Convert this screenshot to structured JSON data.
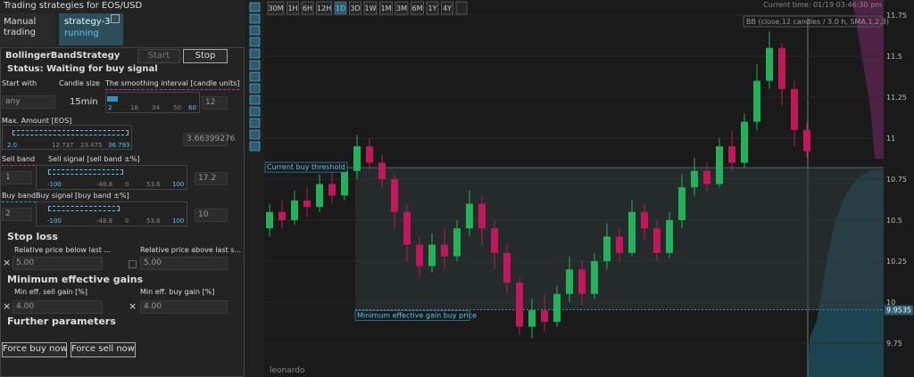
{
  "left_panel": {
    "title": "Trading strategies for EOS/USD",
    "tabs": [
      {
        "label": "Manual trading"
      },
      {
        "label": "strategy-3",
        "status": "running"
      }
    ],
    "strategy_name": "BollingerBandStrategy",
    "buttons": {
      "start": "Start",
      "stop": "Stop"
    },
    "status": "Status: Waiting for buy signal",
    "start_with": {
      "label": "Start with",
      "value": "any"
    },
    "candle_size": {
      "label": "Candle size",
      "value": "15min"
    },
    "smoothing": {
      "label": "The smoothing interval [candle units]",
      "ticks": [
        "2",
        "18",
        "34",
        "50",
        "60"
      ],
      "value": "12"
    },
    "max_amount": {
      "label": "Max. Amount [EOS]",
      "ticks": [
        "2.0",
        "12.737",
        "23.475",
        "36.793"
      ],
      "value": "3.66399276"
    },
    "sell_band": {
      "label": "Sell band",
      "value": "1"
    },
    "sell_signal": {
      "label": "Sell signal [sell band ±%]",
      "ticks": [
        "-100",
        "-48.8",
        "0",
        "53.6",
        "100"
      ],
      "value": "17.2"
    },
    "buy_band": {
      "label": "Buy band",
      "value": "2"
    },
    "buy_signal": {
      "label": "Buy signal [buy band ±%]",
      "ticks": [
        "-100",
        "-48.8",
        "0",
        "53.6",
        "100"
      ],
      "value": "10"
    },
    "stop_loss": {
      "title": "Stop loss",
      "below": {
        "label": "Relative price below last ...",
        "value": "5.00"
      },
      "above": {
        "label": "Relative price above last s...",
        "value": "5.00"
      }
    },
    "min_gains": {
      "title": "Minimum effective gains",
      "sell": {
        "label": "Min eff. sell gain [%]",
        "value": "4.00"
      },
      "buy": {
        "label": "Min eff. buy gain [%]",
        "value": "4.00"
      }
    },
    "further_parameters": "Further parameters",
    "actions": [
      "Force buy now",
      "Force sell now"
    ]
  },
  "chart": {
    "toolbar": [
      "30M",
      "1H",
      "6H",
      "12H",
      "1D",
      "3D",
      "1W",
      "1M",
      "3M",
      "6M",
      "1Y",
      "4Y"
    ],
    "current_time": "Current time: 01/19 03:46:30 pm",
    "indicator_label": "BB (close,12 candles / 3.0 h, SMA,1,2,3)",
    "buy_threshold_label": "Current buy threshold",
    "buy_threshold": 10.82,
    "min_gain_label": "Minimum effective gain buy price",
    "min_gain_value": 9.9535,
    "watermark": "leonardo",
    "ylim": [
      9.6,
      11.8
    ],
    "yticks": [
      11.75,
      11.5,
      11.25,
      11,
      10.75,
      10.5,
      10.25,
      10,
      9.75
    ],
    "candles": {
      "open": [
        10.45,
        10.55,
        10.5,
        10.62,
        10.58,
        10.72,
        10.65,
        10.8,
        10.95,
        10.85,
        10.75,
        10.55,
        10.35,
        10.22,
        10.35,
        10.28,
        10.45,
        10.6,
        10.45,
        10.3,
        10.12,
        9.85,
        9.95,
        9.88,
        10.05,
        10.2,
        10.05,
        10.25,
        10.4,
        10.3,
        10.55,
        10.45,
        10.3,
        10.5,
        10.7,
        10.8,
        10.72,
        10.95,
        10.85,
        11.1,
        11.35,
        11.55,
        11.3,
        11.05
      ],
      "close": [
        10.55,
        10.5,
        10.62,
        10.58,
        10.72,
        10.65,
        10.8,
        10.95,
        10.85,
        10.75,
        10.55,
        10.35,
        10.22,
        10.35,
        10.28,
        10.45,
        10.6,
        10.45,
        10.3,
        10.12,
        9.85,
        9.95,
        9.88,
        10.05,
        10.2,
        10.05,
        10.25,
        10.4,
        10.3,
        10.55,
        10.45,
        10.3,
        10.5,
        10.7,
        10.8,
        10.72,
        10.95,
        10.85,
        11.1,
        11.35,
        11.55,
        11.3,
        11.05,
        10.92
      ],
      "high": [
        10.6,
        10.62,
        10.68,
        10.7,
        10.78,
        10.8,
        10.85,
        11.02,
        11.0,
        10.9,
        10.78,
        10.6,
        10.4,
        10.42,
        10.45,
        10.5,
        10.68,
        10.65,
        10.5,
        10.35,
        10.15,
        10.02,
        10.05,
        10.1,
        10.28,
        10.25,
        10.3,
        10.48,
        10.45,
        10.62,
        10.6,
        10.5,
        10.55,
        10.78,
        10.88,
        10.85,
        11.0,
        11.05,
        11.15,
        11.45,
        11.65,
        11.58,
        11.35,
        11.1
      ],
      "low": [
        10.4,
        10.45,
        10.47,
        10.52,
        10.55,
        10.6,
        10.62,
        10.75,
        10.8,
        10.7,
        10.45,
        10.25,
        10.15,
        10.18,
        10.2,
        10.25,
        10.4,
        10.35,
        10.2,
        10.05,
        9.8,
        9.78,
        9.82,
        9.85,
        10.0,
        9.98,
        10.02,
        10.2,
        10.25,
        10.28,
        10.38,
        10.25,
        10.27,
        10.45,
        10.65,
        10.68,
        10.7,
        10.8,
        10.82,
        11.05,
        11.3,
        11.2,
        10.95,
        10.88
      ]
    }
  }
}
